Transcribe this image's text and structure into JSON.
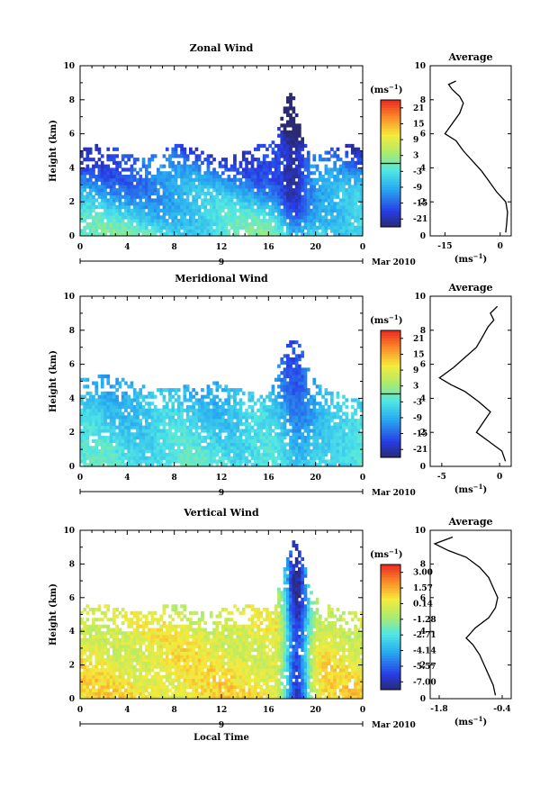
{
  "figure": {
    "bottom_label": "Local Time"
  },
  "chart_data": [
    {
      "type": "heatmap",
      "title": "Zonal Wind",
      "ylabel": "Height (km)",
      "xlim": [
        0,
        24
      ],
      "ylim": [
        0,
        10
      ],
      "x_ticks": [
        "0",
        "4",
        "8",
        "12",
        "16",
        "20",
        "0"
      ],
      "y_ticks": [
        "0",
        "2",
        "4",
        "6",
        "8",
        "10"
      ],
      "date_day": "9",
      "date_month": "Mar 2010",
      "colorbar": {
        "unit": "(ms-1)",
        "ticks": [
          "21",
          "15",
          "9",
          "3",
          "-3",
          "-9",
          "-15",
          "-21"
        ],
        "min": -24,
        "max": 24,
        "zero_line": 0
      },
      "profile": {
        "title": "Average",
        "unit": "(ms-1)",
        "x_ticks": [
          "-15",
          "0"
        ],
        "xlim": [
          -19,
          3
        ],
        "points": [
          [
            1.5,
            0.2
          ],
          [
            1.8,
            0.8
          ],
          [
            2.0,
            1.4
          ],
          [
            1.5,
            2.0
          ],
          [
            -1,
            2.6
          ],
          [
            -3,
            3.2
          ],
          [
            -5,
            3.8
          ],
          [
            -7.5,
            4.4
          ],
          [
            -10,
            5.0
          ],
          [
            -12,
            5.6
          ],
          [
            -15,
            6.0
          ],
          [
            -13,
            6.6
          ],
          [
            -11,
            7.2
          ],
          [
            -10,
            7.8
          ],
          [
            -11,
            8.2
          ],
          [
            -13,
            8.6
          ],
          [
            -14,
            8.9
          ],
          [
            -12,
            9.1
          ]
        ]
      }
    },
    {
      "type": "heatmap",
      "title": "Meridional Wind",
      "ylabel": "Height (km)",
      "xlim": [
        0,
        24
      ],
      "ylim": [
        0,
        10
      ],
      "x_ticks": [
        "0",
        "4",
        "8",
        "12",
        "16",
        "20",
        "0"
      ],
      "y_ticks": [
        "0",
        "2",
        "4",
        "6",
        "8",
        "10"
      ],
      "date_day": "9",
      "date_month": "Mar 2010",
      "colorbar": {
        "unit": "(ms-1)",
        "ticks": [
          "21",
          "15",
          "9",
          "3",
          "-3",
          "-9",
          "-15",
          "-21"
        ],
        "min": -24,
        "max": 24,
        "zero_line": 0
      },
      "profile": {
        "title": "Average",
        "unit": "(ms-1)",
        "x_ticks": [
          "-5",
          "0"
        ],
        "xlim": [
          -6,
          1
        ],
        "points": [
          [
            0.5,
            0.3
          ],
          [
            0.2,
            0.9
          ],
          [
            -1.0,
            1.5
          ],
          [
            -2.0,
            2.0
          ],
          [
            -1.4,
            2.6
          ],
          [
            -0.8,
            3.2
          ],
          [
            -1.8,
            3.8
          ],
          [
            -3.0,
            4.4
          ],
          [
            -4.2,
            4.8
          ],
          [
            -5.2,
            5.2
          ],
          [
            -4.0,
            5.8
          ],
          [
            -3.0,
            6.4
          ],
          [
            -2.0,
            7.0
          ],
          [
            -1.5,
            7.6
          ],
          [
            -1.0,
            8.2
          ],
          [
            -0.5,
            8.6
          ],
          [
            -0.8,
            9.0
          ],
          [
            -0.2,
            9.4
          ]
        ]
      }
    },
    {
      "type": "heatmap",
      "title": "Vertical Wind",
      "ylabel": "Height (km)",
      "xlim": [
        0,
        24
      ],
      "ylim": [
        0,
        10
      ],
      "x_ticks": [
        "0",
        "4",
        "8",
        "12",
        "16",
        "20",
        "0"
      ],
      "y_ticks": [
        "0",
        "2",
        "4",
        "6",
        "8",
        "10"
      ],
      "date_day": "9",
      "date_month": "Mar 2010",
      "colorbar": {
        "unit": "(ms-1)",
        "ticks": [
          "3.00",
          "1.57",
          "0.14",
          "-1.28",
          "-2.71",
          "-4.14",
          "-5.57",
          "-7.00"
        ],
        "min": -7.7,
        "max": 3.7
      },
      "profile": {
        "title": "Average",
        "unit": "(ms-1)",
        "x_ticks": [
          "-1.8",
          "-0.4"
        ],
        "xlim": [
          -2.0,
          -0.2
        ],
        "points": [
          [
            -0.55,
            0.2
          ],
          [
            -0.6,
            0.8
          ],
          [
            -0.7,
            1.4
          ],
          [
            -0.8,
            2.0
          ],
          [
            -0.9,
            2.6
          ],
          [
            -1.05,
            3.2
          ],
          [
            -1.2,
            3.6
          ],
          [
            -1.0,
            4.2
          ],
          [
            -0.7,
            4.8
          ],
          [
            -0.55,
            5.4
          ],
          [
            -0.5,
            6.0
          ],
          [
            -0.6,
            6.6
          ],
          [
            -0.7,
            7.2
          ],
          [
            -0.9,
            7.8
          ],
          [
            -1.2,
            8.4
          ],
          [
            -1.6,
            8.8
          ],
          [
            -1.9,
            9.2
          ],
          [
            -1.5,
            9.6
          ]
        ]
      }
    }
  ]
}
